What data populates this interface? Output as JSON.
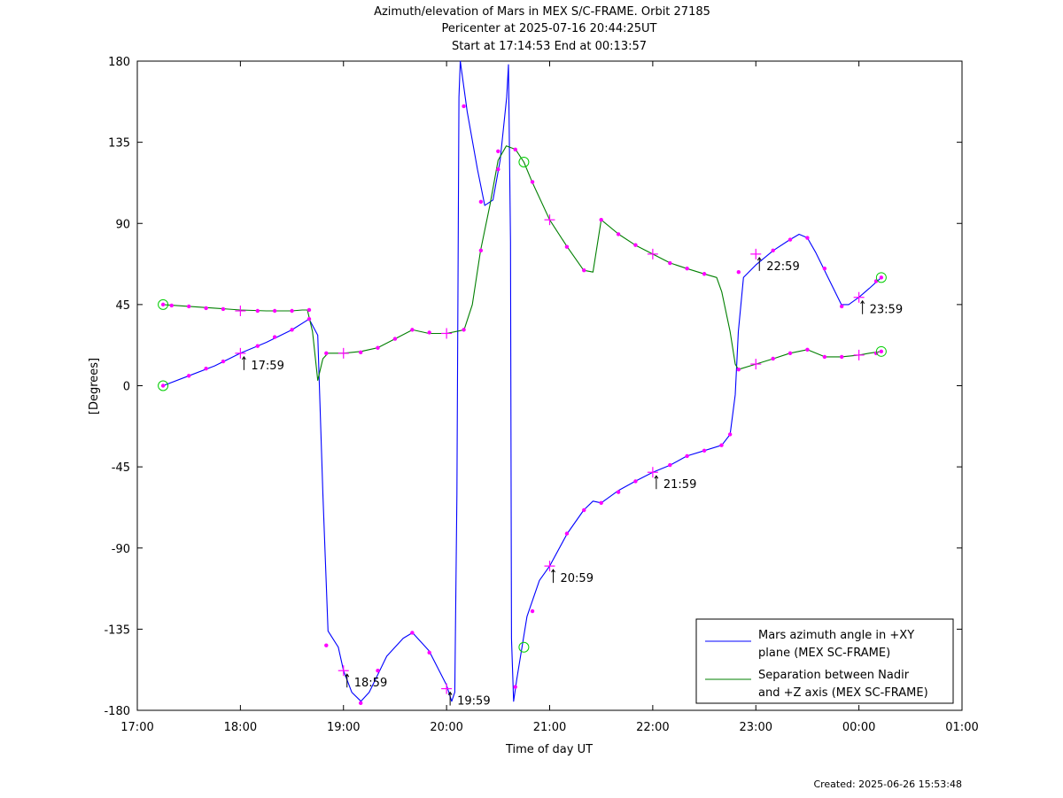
{
  "title_lines": [
    "Azimuth/elevation of Mars in MEX S/C-FRAME.  Orbit 27185",
    "Pericenter at 2025-07-16 20:44:25UT",
    "Start at 17:14:53 End at 00:13:57"
  ],
  "footer": "Created: 2025-06-26 15:53:48",
  "chart_data": {
    "type": "line",
    "xlabel": "Time of day UT",
    "ylabel": "[Degrees]",
    "xlim_hours": [
      17,
      25
    ],
    "ylim": [
      -180,
      180
    ],
    "x_ticks": [
      {
        "h": 17,
        "label": "17:00"
      },
      {
        "h": 18,
        "label": "18:00"
      },
      {
        "h": 19,
        "label": "19:00"
      },
      {
        "h": 20,
        "label": "20:00"
      },
      {
        "h": 21,
        "label": "21:00"
      },
      {
        "h": 22,
        "label": "22:00"
      },
      {
        "h": 23,
        "label": "23:00"
      },
      {
        "h": 24,
        "label": "00:00"
      },
      {
        "h": 25,
        "label": "01:00"
      }
    ],
    "y_ticks": [
      {
        "v": 180,
        "label": "180"
      },
      {
        "v": 135,
        "label": "135"
      },
      {
        "v": 90,
        "label": "90"
      },
      {
        "v": 45,
        "label": "45"
      },
      {
        "v": 0,
        "label": "0"
      },
      {
        "v": -45,
        "label": "-45"
      },
      {
        "v": -90,
        "label": "-90"
      },
      {
        "v": -135,
        "label": "-135"
      },
      {
        "v": -180,
        "label": "-180"
      }
    ],
    "legend_position": "bottom-right",
    "series": [
      {
        "name": "Mars azimuth angle in +XY plane (MEX SC-FRAME)",
        "legend_lines": [
          "Mars azimuth angle in +XY",
          "plane (MEX SC-FRAME)"
        ],
        "color": "#0000ff",
        "points": [
          [
            17.25,
            0
          ],
          [
            17.5,
            5.5
          ],
          [
            17.75,
            11
          ],
          [
            18.0,
            18
          ],
          [
            18.25,
            24
          ],
          [
            18.5,
            31
          ],
          [
            18.667,
            37
          ],
          [
            18.75,
            28
          ],
          [
            18.8,
            -60
          ],
          [
            18.85,
            -136
          ],
          [
            18.95,
            -145
          ],
          [
            19.0,
            -158
          ],
          [
            19.08,
            -170
          ],
          [
            19.17,
            -175
          ],
          [
            19.25,
            -170
          ],
          [
            19.42,
            -150
          ],
          [
            19.58,
            -140
          ],
          [
            19.67,
            -137
          ],
          [
            19.83,
            -147
          ],
          [
            20.0,
            -166
          ],
          [
            20.05,
            -175
          ],
          [
            20.08,
            -170
          ],
          [
            20.1,
            -60
          ],
          [
            20.12,
            160
          ],
          [
            20.133,
            180
          ],
          [
            20.2,
            152
          ],
          [
            20.3,
            120
          ],
          [
            20.37,
            100
          ],
          [
            20.45,
            103
          ],
          [
            20.52,
            125
          ],
          [
            20.583,
            160
          ],
          [
            20.6,
            178
          ],
          [
            20.62,
            80
          ],
          [
            20.63,
            -140
          ],
          [
            20.65,
            -175
          ],
          [
            20.68,
            -163
          ],
          [
            20.78,
            -128
          ],
          [
            20.9,
            -108
          ],
          [
            21.0,
            -100
          ],
          [
            21.17,
            -82
          ],
          [
            21.33,
            -69
          ],
          [
            21.42,
            -64
          ],
          [
            21.5,
            -65
          ],
          [
            21.67,
            -58
          ],
          [
            21.83,
            -53
          ],
          [
            22.0,
            -48
          ],
          [
            22.17,
            -44
          ],
          [
            22.33,
            -39
          ],
          [
            22.5,
            -36
          ],
          [
            22.67,
            -33
          ],
          [
            22.75,
            -27
          ],
          [
            22.8,
            -5
          ],
          [
            22.83,
            30
          ],
          [
            22.88,
            60
          ],
          [
            23.0,
            67
          ],
          [
            23.17,
            75
          ],
          [
            23.33,
            81
          ],
          [
            23.42,
            84
          ],
          [
            23.5,
            82
          ],
          [
            23.58,
            74
          ],
          [
            23.7,
            60
          ],
          [
            23.83,
            45
          ],
          [
            23.9,
            45
          ],
          [
            24.0,
            49
          ],
          [
            24.1,
            54
          ],
          [
            24.217,
            60
          ]
        ],
        "markers": [
          [
            17.5,
            5.5
          ],
          [
            17.667,
            9.5
          ],
          [
            17.833,
            13.5
          ],
          [
            18.167,
            22
          ],
          [
            18.333,
            27
          ],
          [
            18.5,
            31
          ],
          [
            18.667,
            37
          ],
          [
            18.833,
            -144
          ],
          [
            19.167,
            -176
          ],
          [
            19.333,
            -158
          ],
          [
            19.667,
            -137
          ],
          [
            19.833,
            -148
          ],
          [
            20.167,
            155
          ],
          [
            20.333,
            102
          ],
          [
            20.5,
            120
          ],
          [
            20.667,
            -167
          ],
          [
            20.833,
            -125
          ],
          [
            21.167,
            -82
          ],
          [
            21.333,
            -69
          ],
          [
            21.5,
            -65
          ],
          [
            21.667,
            -59
          ],
          [
            21.833,
            -53
          ],
          [
            22.167,
            -44
          ],
          [
            22.333,
            -39
          ],
          [
            22.5,
            -36
          ],
          [
            22.667,
            -33
          ],
          [
            22.75,
            -27
          ],
          [
            22.833,
            63
          ],
          [
            23.167,
            75
          ],
          [
            23.333,
            81
          ],
          [
            23.5,
            82
          ],
          [
            23.667,
            65
          ],
          [
            23.833,
            44
          ],
          [
            24.167,
            58
          ]
        ],
        "start_marker": [
          17.25,
          0
        ],
        "end_marker": [
          24.217,
          60
        ],
        "hour_marks": [
          {
            "x": 18.0,
            "y": 18,
            "label": "17:59"
          },
          {
            "x": 19.0,
            "y": -158,
            "label": "18:59"
          },
          {
            "x": 20.0,
            "y": -168,
            "label": "19:59"
          },
          {
            "x": 21.0,
            "y": -100,
            "label": "20:59"
          },
          {
            "x": 22.0,
            "y": -48,
            "label": "21:59"
          },
          {
            "x": 23.0,
            "y": 73,
            "label": "22:59"
          },
          {
            "x": 24.0,
            "y": 49,
            "label": "23:59"
          }
        ]
      },
      {
        "name": "Separation between Nadir and +Z axis (MEX SC-FRAME)",
        "legend_lines": [
          "Separation between Nadir",
          "and +Z axis (MEX SC-FRAME)"
        ],
        "color": "#007f00",
        "points": [
          [
            17.25,
            45
          ],
          [
            17.5,
            44
          ],
          [
            17.75,
            43
          ],
          [
            18.0,
            42
          ],
          [
            18.25,
            41.5
          ],
          [
            18.5,
            41.5
          ],
          [
            18.6,
            42
          ],
          [
            18.65,
            42
          ],
          [
            18.7,
            30
          ],
          [
            18.75,
            3
          ],
          [
            18.8,
            15
          ],
          [
            18.85,
            18
          ],
          [
            19.0,
            18
          ],
          [
            19.17,
            19
          ],
          [
            19.33,
            21
          ],
          [
            19.5,
            26
          ],
          [
            19.67,
            31
          ],
          [
            19.83,
            29
          ],
          [
            20.0,
            29
          ],
          [
            20.17,
            31
          ],
          [
            20.25,
            45
          ],
          [
            20.33,
            75
          ],
          [
            20.42,
            100
          ],
          [
            20.5,
            125
          ],
          [
            20.58,
            133
          ],
          [
            20.67,
            131
          ],
          [
            20.75,
            124
          ],
          [
            20.83,
            113
          ],
          [
            21.0,
            92
          ],
          [
            21.17,
            77
          ],
          [
            21.33,
            64
          ],
          [
            21.42,
            63
          ],
          [
            21.5,
            92
          ],
          [
            21.67,
            84
          ],
          [
            21.83,
            78
          ],
          [
            22.0,
            73
          ],
          [
            22.17,
            68
          ],
          [
            22.33,
            65
          ],
          [
            22.5,
            62
          ],
          [
            22.62,
            60
          ],
          [
            22.67,
            52
          ],
          [
            22.75,
            30
          ],
          [
            22.8,
            12
          ],
          [
            22.83,
            9
          ],
          [
            23.0,
            12
          ],
          [
            23.17,
            15
          ],
          [
            23.33,
            18
          ],
          [
            23.5,
            20
          ],
          [
            23.67,
            16
          ],
          [
            23.83,
            16
          ],
          [
            24.0,
            17
          ],
          [
            24.1,
            18
          ],
          [
            24.217,
            19
          ]
        ],
        "markers": [
          [
            17.333,
            44.5
          ],
          [
            17.5,
            44
          ],
          [
            17.667,
            43
          ],
          [
            17.833,
            42.5
          ],
          [
            18.167,
            41.5
          ],
          [
            18.333,
            41.5
          ],
          [
            18.5,
            41.5
          ],
          [
            18.667,
            42
          ],
          [
            18.833,
            18
          ],
          [
            19.167,
            18.5
          ],
          [
            19.333,
            21
          ],
          [
            19.5,
            26
          ],
          [
            19.667,
            31
          ],
          [
            19.833,
            29.5
          ],
          [
            20.167,
            31
          ],
          [
            20.333,
            75
          ],
          [
            20.5,
            130
          ],
          [
            20.667,
            131
          ],
          [
            20.833,
            113
          ],
          [
            21.167,
            77
          ],
          [
            21.333,
            64
          ],
          [
            21.5,
            92
          ],
          [
            21.667,
            84
          ],
          [
            21.833,
            78
          ],
          [
            22.167,
            68
          ],
          [
            22.333,
            65
          ],
          [
            22.5,
            62
          ],
          [
            22.833,
            9
          ],
          [
            23.167,
            15
          ],
          [
            23.333,
            18
          ],
          [
            23.5,
            20
          ],
          [
            23.667,
            16
          ],
          [
            23.833,
            16
          ],
          [
            24.167,
            18
          ]
        ],
        "start_marker": [
          17.25,
          45
        ],
        "end_marker": [
          24.217,
          19
        ],
        "hour_marks": [
          {
            "x": 18.0,
            "y": 41.5
          },
          {
            "x": 19.0,
            "y": 18
          },
          {
            "x": 20.0,
            "y": 29
          },
          {
            "x": 21.0,
            "y": 92
          },
          {
            "x": 22.0,
            "y": 73
          },
          {
            "x": 23.0,
            "y": 12
          },
          {
            "x": 24.0,
            "y": 17
          }
        ]
      }
    ],
    "extra_markers": [
      {
        "x": 20.75,
        "y": 124,
        "kind": "circle"
      },
      {
        "x": 20.75,
        "y": -145,
        "kind": "circle"
      }
    ]
  }
}
